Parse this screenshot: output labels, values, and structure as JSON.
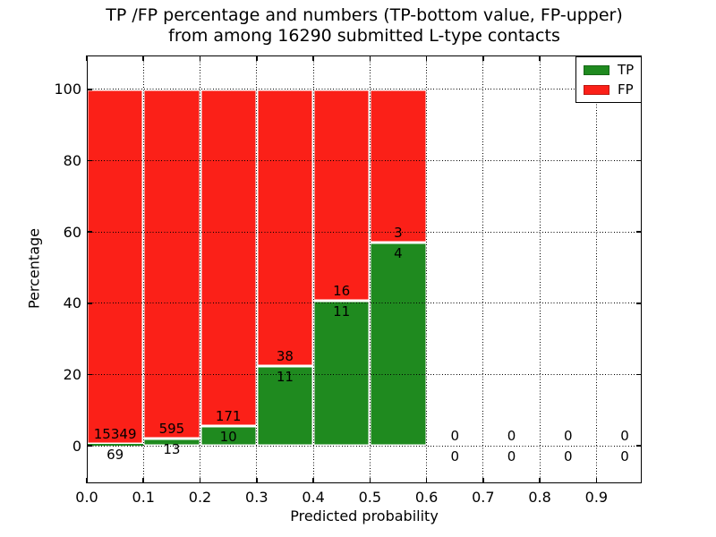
{
  "title": {
    "line1": "TP /FP percentage and numbers (TP-bottom value, FP-upper)",
    "line2": "from among 16290 submitted L-type contacts"
  },
  "axes": {
    "xlabel": "Predicted probability",
    "ylabel": "Percentage",
    "xtick_labels": [
      "0.0",
      "0.1",
      "0.2",
      "0.3",
      "0.4",
      "0.5",
      "0.6",
      "0.7",
      "0.8",
      "0.9"
    ],
    "ytick_labels": [
      "0",
      "20",
      "40",
      "60",
      "80",
      "100"
    ]
  },
  "legend": {
    "position": "upper right",
    "entries": [
      {
        "label": "TP",
        "color": "#1f8a1f"
      },
      {
        "label": "FP",
        "color": "#fb2018"
      }
    ]
  },
  "chart_data": {
    "type": "bar",
    "variant": "stacked-percentage",
    "title": "TP /FP percentage and numbers (TP-bottom value, FP-upper)\nfrom among 16290 submitted L-type contacts",
    "xlabel": "Predicted probability",
    "ylabel": "Percentage",
    "total_submitted": 16290,
    "bin_width": 0.1,
    "bin_edges": [
      0.0,
      0.1,
      0.2,
      0.3,
      0.4,
      0.5,
      0.6,
      0.7,
      0.8,
      0.9,
      1.0
    ],
    "categories": [
      "0.0-0.1",
      "0.1-0.2",
      "0.2-0.3",
      "0.3-0.4",
      "0.4-0.5",
      "0.5-0.6",
      "0.6-0.7",
      "0.7-0.8",
      "0.8-0.9",
      "0.9-1.0"
    ],
    "series": [
      {
        "name": "TP",
        "color": "#1f8a1f",
        "counts": [
          69,
          13,
          10,
          11,
          11,
          4,
          0,
          0,
          0,
          0
        ],
        "percent": [
          0.45,
          2.14,
          5.52,
          22.45,
          40.74,
          57.14,
          0,
          0,
          0,
          0
        ]
      },
      {
        "name": "FP",
        "color": "#fb2018",
        "counts": [
          15349,
          595,
          171,
          38,
          16,
          3,
          0,
          0,
          0,
          0
        ],
        "percent": [
          99.55,
          97.86,
          94.48,
          77.55,
          59.26,
          42.86,
          0,
          0,
          0,
          0
        ]
      }
    ],
    "bars_drawn_for_bins": [
      0,
      1,
      2,
      3,
      4,
      5
    ],
    "xticks": [
      0.0,
      0.1,
      0.2,
      0.3,
      0.4,
      0.5,
      0.6,
      0.7,
      0.8,
      0.9
    ],
    "yticks": [
      0,
      20,
      40,
      60,
      80,
      100
    ],
    "xlim": [
      0,
      0.98
    ],
    "ylim": [
      -10.5,
      109.5
    ],
    "grid": "dotted black, both axes, drawn over bars",
    "bar_edge_color": "#ffffff",
    "legend_position": "upper right",
    "annotation_rule": "FP count printed just above TP/FP boundary, TP count just below it"
  }
}
